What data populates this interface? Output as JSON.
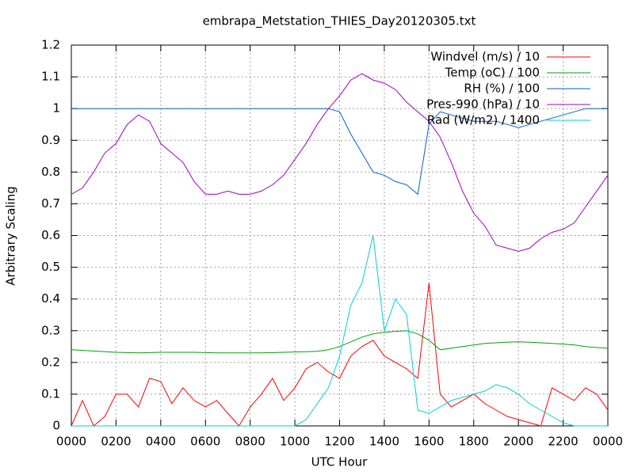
{
  "chart_data": {
    "type": "line",
    "title": "embrapa_Metstation_THIES_Day20120305.txt",
    "xlabel": "UTC Hour",
    "ylabel": "Arbitrary Scaling",
    "xlim": [
      0,
      24
    ],
    "ylim": [
      0,
      1.2
    ],
    "xticks": [
      {
        "value": 0,
        "label": "0000"
      },
      {
        "value": 2,
        "label": "0200"
      },
      {
        "value": 4,
        "label": "0400"
      },
      {
        "value": 6,
        "label": "0600"
      },
      {
        "value": 8,
        "label": "0800"
      },
      {
        "value": 10,
        "label": "1000"
      },
      {
        "value": 12,
        "label": "1200"
      },
      {
        "value": 14,
        "label": "1400"
      },
      {
        "value": 16,
        "label": "1600"
      },
      {
        "value": 18,
        "label": "1800"
      },
      {
        "value": 20,
        "label": "2000"
      },
      {
        "value": 22,
        "label": "2200"
      },
      {
        "value": 24,
        "label": "0000"
      }
    ],
    "yticks": [
      0,
      0.1,
      0.2,
      0.3,
      0.4,
      0.5,
      0.6,
      0.7,
      0.8,
      0.9,
      1,
      1.1,
      1.2
    ],
    "grid": true,
    "legend": "upper right",
    "x": [
      0,
      0.5,
      1,
      1.5,
      2,
      2.5,
      3,
      3.5,
      4,
      4.5,
      5,
      5.5,
      6,
      6.5,
      7,
      7.5,
      8,
      8.5,
      9,
      9.5,
      10,
      10.5,
      11,
      11.5,
      12,
      12.5,
      13,
      13.5,
      14,
      14.5,
      15,
      15.5,
      16,
      16.5,
      17,
      17.5,
      18,
      18.5,
      19,
      19.5,
      20,
      20.5,
      21,
      21.5,
      22,
      22.5,
      23,
      23.5,
      24
    ],
    "series": [
      {
        "name": "Windvel (m/s) / 10",
        "color": "#ff0000",
        "values": [
          0,
          0.08,
          0,
          0.03,
          0.1,
          0.1,
          0.06,
          0.15,
          0.14,
          0.07,
          0.12,
          0.08,
          0.06,
          0.08,
          0.04,
          0,
          0.06,
          0.1,
          0.15,
          0.08,
          0.12,
          0.18,
          0.2,
          0.17,
          0.15,
          0.22,
          0.25,
          0.27,
          0.22,
          0.2,
          0.18,
          0.15,
          0.45,
          0.1,
          0.06,
          0.08,
          0.1,
          0.07,
          0.05,
          0.03,
          0.02,
          0.01,
          0,
          0.12,
          0.1,
          0.08,
          0.12,
          0.1,
          0.05
        ]
      },
      {
        "name": "Temp (oC) / 100",
        "color": "#00a000",
        "values": [
          0.24,
          0.238,
          0.236,
          0.234,
          0.232,
          0.231,
          0.23,
          0.231,
          0.232,
          0.232,
          0.232,
          0.232,
          0.231,
          0.23,
          0.23,
          0.23,
          0.23,
          0.23,
          0.231,
          0.232,
          0.233,
          0.234,
          0.235,
          0.24,
          0.25,
          0.265,
          0.28,
          0.29,
          0.295,
          0.298,
          0.3,
          0.29,
          0.27,
          0.24,
          0.245,
          0.25,
          0.255,
          0.26,
          0.262,
          0.264,
          0.265,
          0.264,
          0.262,
          0.26,
          0.258,
          0.255,
          0.25,
          0.247,
          0.245
        ]
      },
      {
        "name": "RH (%) / 100",
        "color": "#0060d0",
        "values": [
          1,
          1,
          1,
          1,
          1,
          1,
          1,
          1,
          1,
          1,
          1,
          1,
          1,
          1,
          1,
          1,
          1,
          1,
          1,
          1,
          1,
          1,
          1,
          1,
          0.99,
          0.92,
          0.86,
          0.8,
          0.79,
          0.77,
          0.76,
          0.73,
          0.95,
          0.99,
          0.98,
          0.97,
          0.96,
          0.96,
          0.96,
          0.95,
          0.94,
          0.95,
          0.96,
          0.97,
          0.98,
          0.99,
          1,
          1,
          1
        ]
      },
      {
        "name": "Pres-990 (hPa) / 10",
        "color": "#a000c0",
        "values": [
          0.73,
          0.75,
          0.8,
          0.86,
          0.89,
          0.95,
          0.98,
          0.96,
          0.89,
          0.86,
          0.83,
          0.77,
          0.73,
          0.73,
          0.74,
          0.73,
          0.73,
          0.74,
          0.76,
          0.79,
          0.84,
          0.89,
          0.95,
          1,
          1.04,
          1.09,
          1.11,
          1.09,
          1.08,
          1.06,
          1.02,
          0.99,
          0.96,
          0.91,
          0.83,
          0.74,
          0.67,
          0.63,
          0.57,
          0.56,
          0.55,
          0.56,
          0.59,
          0.61,
          0.62,
          0.64,
          0.69,
          0.74,
          0.79
        ]
      },
      {
        "name": "Rad (W/m2) / 1400",
        "color": "#00d0d0",
        "values": [
          0,
          0,
          0,
          0,
          0,
          0,
          0,
          0,
          0,
          0,
          0,
          0,
          0,
          0,
          0,
          0,
          0,
          0,
          0,
          0,
          0,
          0.02,
          0.07,
          0.12,
          0.22,
          0.38,
          0.45,
          0.6,
          0.3,
          0.4,
          0.35,
          0.05,
          0.04,
          0.06,
          0.08,
          0.09,
          0.1,
          0.11,
          0.13,
          0.12,
          0.1,
          0.07,
          0.05,
          0.03,
          0.01,
          0,
          0,
          0,
          0
        ]
      }
    ]
  }
}
